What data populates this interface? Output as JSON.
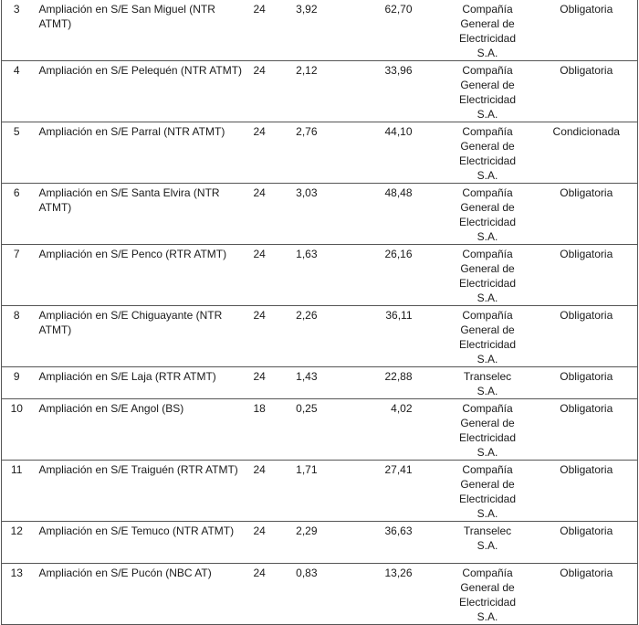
{
  "rows": [
    {
      "num": "3",
      "description": "Ampliación en S/E San Miguel (NTR ATMT)",
      "months": "24",
      "value1": "3,92",
      "value2": "62,70",
      "company": "Compañía General de Electricidad S.A.",
      "status": "Obligatoria"
    },
    {
      "num": "4",
      "description": "Ampliación en S/E Pelequén (NTR ATMT)",
      "months": "24",
      "value1": "2,12",
      "value2": "33,96",
      "company": "Compañía General de Electricidad S.A.",
      "status": "Obligatoria"
    },
    {
      "num": "5",
      "description": "Ampliación en S/E Parral (NTR ATMT)",
      "months": "24",
      "value1": "2,76",
      "value2": "44,10",
      "company": "Compañía General de Electricidad S.A.",
      "status": "Condicionada"
    },
    {
      "num": "6",
      "description": "Ampliación en S/E Santa Elvira (NTR ATMT)",
      "months": "24",
      "value1": "3,03",
      "value2": "48,48",
      "company": "Compañía General de Electricidad S.A.",
      "status": "Obligatoria"
    },
    {
      "num": "7",
      "description": "Ampliación en S/E Penco (RTR ATMT)",
      "months": "24",
      "value1": "1,63",
      "value2": "26,16",
      "company": "Compañía General de Electricidad S.A.",
      "status": "Obligatoria"
    },
    {
      "num": "8",
      "description": "Ampliación en S/E Chiguayante (NTR ATMT)",
      "months": "24",
      "value1": "2,26",
      "value2": "36,11",
      "company": "Compañía General de Electricidad S.A.",
      "status": "Obligatoria"
    },
    {
      "num": "9",
      "description": "Ampliación en S/E Laja (RTR ATMT)",
      "months": "24",
      "value1": "1,43",
      "value2": "22,88",
      "company": "Transelec S.A.",
      "status": "Obligatoria"
    },
    {
      "num": "10",
      "description": "Ampliación en S/E Angol (BS)",
      "months": "18",
      "value1": "0,25",
      "value2": "4,02",
      "company": "Compañía General de Electricidad S.A.",
      "status": "Obligatoria"
    },
    {
      "num": "11",
      "description": "Ampliación en S/E Traiguén (RTR ATMT)",
      "months": "24",
      "value1": "1,71",
      "value2": "27,41",
      "company": "Compañía General de Electricidad S.A.",
      "status": "Obligatoria"
    },
    {
      "num": "12",
      "description": "Ampliación en S/E Temuco (NTR ATMT)",
      "months": "24",
      "value1": "2,29",
      "value2": "36,63",
      "company": "Transelec S.A.",
      "status": "Obligatoria"
    },
    {
      "num": "13",
      "description": "Ampliación en S/E Pucón (NBC AT)",
      "months": "24",
      "value1": "0,83",
      "value2": "13,26",
      "company": "Compañía General de Electricidad S.A.",
      "status": "Obligatoria"
    }
  ]
}
